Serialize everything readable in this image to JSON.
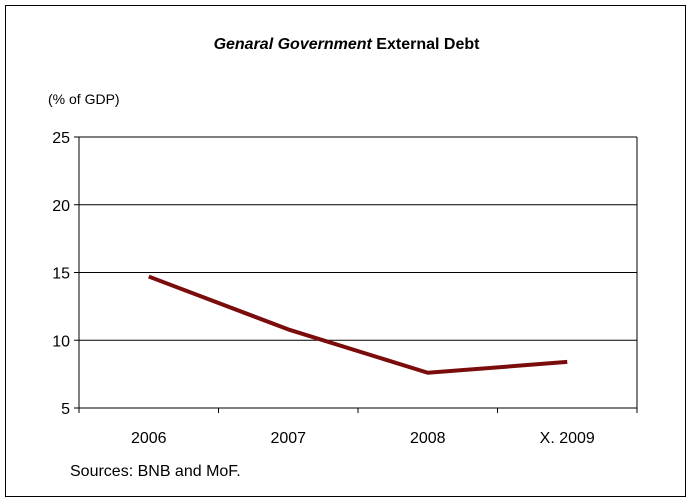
{
  "chart_data": {
    "type": "line",
    "title_italic": "Genaral Government",
    "title_rest": "External Debt",
    "ylabel": "(% of GDP)",
    "categories": [
      "2006",
      "2007",
      "2008",
      "X. 2009"
    ],
    "series": [
      {
        "values": [
          14.7,
          10.8,
          7.6,
          8.4
        ],
        "color": "#7b0c0c"
      }
    ],
    "ylim": [
      5,
      25
    ],
    "yticks": [
      5,
      10,
      15,
      20,
      25
    ],
    "grid": true,
    "source": "Sources: BNB and MoF."
  }
}
